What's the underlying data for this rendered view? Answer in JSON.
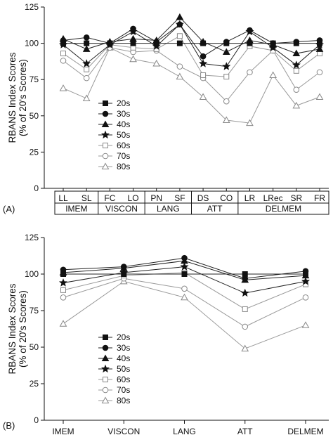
{
  "chart_data": [
    {
      "panel": "(A)",
      "type": "line",
      "ylabel_lines": [
        "RBANS Index Scores",
        "(% of 20's Scores)"
      ],
      "ylim": [
        0,
        125
      ],
      "yticks": [
        0,
        25,
        50,
        75,
        100,
        125
      ],
      "categories": [
        "LL",
        "SL",
        "FC",
        "LO",
        "PN",
        "SF",
        "DS",
        "CO",
        "LR",
        "LRec",
        "SR",
        "FR"
      ],
      "groups": [
        {
          "label": "IMEM",
          "span": [
            0,
            1
          ]
        },
        {
          "label": "VISCON",
          "span": [
            2,
            3
          ]
        },
        {
          "label": "LANG",
          "span": [
            4,
            5
          ]
        },
        {
          "label": "ATT",
          "span": [
            6,
            7
          ]
        },
        {
          "label": "DELMEM",
          "span": [
            8,
            11
          ]
        }
      ],
      "legend": [
        "20s",
        "30s",
        "40s",
        "50s",
        "60s",
        "70s",
        "80s"
      ],
      "series": [
        {
          "name": "20s",
          "marker": "square-filled",
          "values": [
            100,
            100,
            100,
            100,
            100,
            100,
            100,
            100,
            100,
            100,
            100,
            100
          ]
        },
        {
          "name": "30s",
          "marker": "circle-filled",
          "values": [
            102,
            104,
            100,
            110,
            101,
            113,
            91,
            101,
            109,
            100,
            101,
            102
          ]
        },
        {
          "name": "40s",
          "marker": "triangle-filled",
          "values": [
            103,
            96,
            101,
            103,
            102,
            118,
            101,
            94,
            102,
            99,
            93,
            96
          ]
        },
        {
          "name": "50s",
          "marker": "star-filled",
          "values": [
            99,
            86,
            99,
            108,
            98,
            113,
            86,
            84,
            108,
            97,
            85,
            99
          ]
        },
        {
          "name": "60s",
          "marker": "square-open",
          "values": [
            93,
            82,
            99,
            97,
            96,
            105,
            78,
            77,
            98,
            95,
            81,
            93
          ]
        },
        {
          "name": "70s",
          "marker": "circle-open",
          "values": [
            88,
            76,
            97,
            94,
            95,
            84,
            76,
            60,
            80,
            95,
            68,
            80
          ]
        },
        {
          "name": "80s",
          "marker": "triangle-open",
          "values": [
            69,
            62,
            97,
            89,
            86,
            77,
            63,
            47,
            45,
            78,
            57,
            63
          ]
        }
      ]
    },
    {
      "panel": "(B)",
      "type": "line",
      "ylabel_lines": [
        "RBANS Index Scores",
        "(% of 20's Scores)"
      ],
      "ylim": [
        0,
        125
      ],
      "yticks": [
        0,
        25,
        50,
        75,
        100,
        125
      ],
      "categories": [
        "IMEM",
        "VISCON",
        "LANG",
        "ATT",
        "DELMEM"
      ],
      "legend": [
        "20s",
        "30s",
        "40s",
        "50s",
        "60s",
        "70s",
        "80s"
      ],
      "series": [
        {
          "name": "20s",
          "marker": "square-filled",
          "values": [
            100,
            100,
            100,
            100,
            100
          ]
        },
        {
          "name": "30s",
          "marker": "circle-filled",
          "values": [
            103,
            105,
            111,
            97,
            102
          ]
        },
        {
          "name": "40s",
          "marker": "triangle-filled",
          "values": [
            101,
            104,
            109,
            96,
            99
          ]
        },
        {
          "name": "50s",
          "marker": "star-filled",
          "values": [
            94,
            101,
            105,
            87,
            95
          ]
        },
        {
          "name": "60s",
          "marker": "square-open",
          "values": [
            89,
            99,
            101,
            76,
            93
          ]
        },
        {
          "name": "70s",
          "marker": "circle-open",
          "values": [
            84,
            97,
            90,
            64,
            84
          ]
        },
        {
          "name": "80s",
          "marker": "triangle-open",
          "values": [
            66,
            95,
            84,
            49,
            65
          ]
        }
      ]
    }
  ]
}
